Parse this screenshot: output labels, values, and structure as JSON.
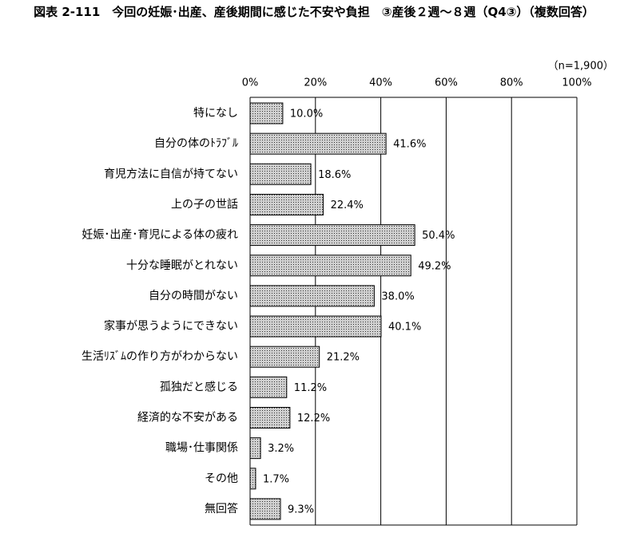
{
  "chart_data": {
    "type": "bar",
    "orientation": "horizontal",
    "title": "図表 2-111　今回の妊娠･出産、産後期間に感じた不安や負担　③産後２週～８週（Q4③）（複数回答）",
    "note": "（n=1,900）",
    "categories": [
      "特になし",
      "自分の体のﾄﾗﾌﾞﾙ",
      "育児方法に自信が持てない",
      "上の子の世話",
      "妊娠･出産･育児による体の疲れ",
      "十分な睡眠がとれない",
      "自分の時間がない",
      "家事が思うようにできない",
      "生活ﾘｽﾞﾑの作り方がわからない",
      "孤独だと感じる",
      "経済的な不安がある",
      "職場･仕事関係",
      "その他",
      "無回答"
    ],
    "values": [
      10.0,
      41.6,
      18.6,
      22.4,
      50.4,
      49.2,
      38.0,
      40.1,
      21.2,
      11.2,
      12.2,
      3.2,
      1.7,
      9.3
    ],
    "value_labels": [
      "10.0%",
      "41.6%",
      "18.6%",
      "22.4%",
      "50.4%",
      "49.2%",
      "38.0%",
      "40.1%",
      "21.2%",
      "11.2%",
      "12.2%",
      "3.2%",
      "1.7%",
      "9.3%"
    ],
    "color": "#d0d0d0",
    "xlim": [
      0,
      100
    ],
    "xticks": [
      {
        "value": 0,
        "label": "0%"
      },
      {
        "value": 20,
        "label": "20%"
      },
      {
        "value": 40,
        "label": "40%"
      },
      {
        "value": 60,
        "label": "60%"
      },
      {
        "value": 80,
        "label": "80%"
      },
      {
        "value": 100,
        "label": "100%"
      }
    ],
    "grid": true
  }
}
